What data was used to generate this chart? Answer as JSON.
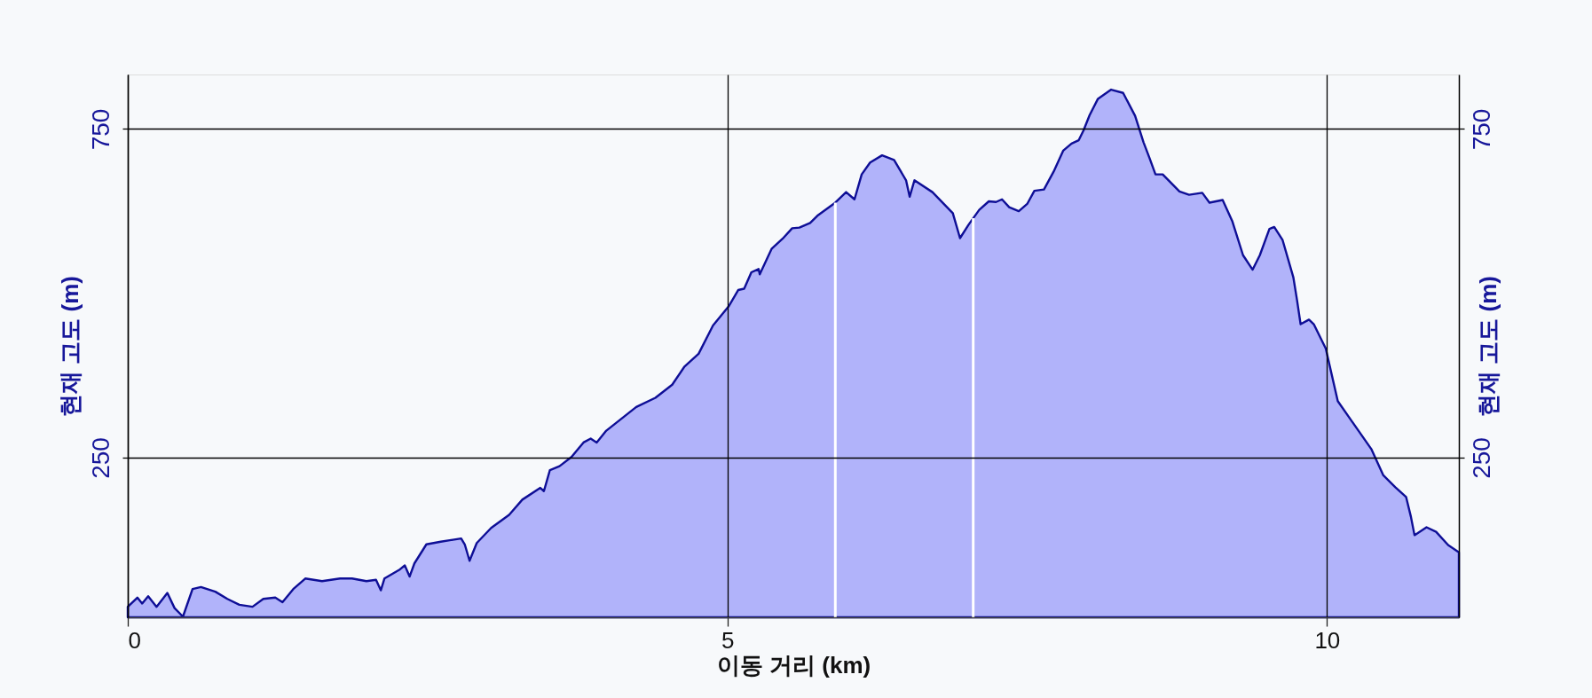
{
  "chart_data": {
    "type": "area",
    "xlabel": "이동 거리 (km)",
    "ylabel": "현재 고도 (m)",
    "y2label": "현재 고도 (m)",
    "color": "#b1b3fa",
    "x": [
      0.0,
      0.08,
      0.12,
      0.17,
      0.24,
      0.33,
      0.39,
      0.46,
      0.54,
      0.61,
      0.73,
      0.83,
      0.93,
      1.04,
      1.13,
      1.23,
      1.29,
      1.38,
      1.48,
      1.62,
      1.77,
      1.87,
      1.99,
      2.07,
      2.11,
      2.14,
      2.27,
      2.31,
      2.35,
      2.39,
      2.49,
      2.61,
      2.71,
      2.78,
      2.81,
      2.85,
      2.91,
      3.03,
      3.18,
      3.29,
      3.44,
      3.47,
      3.52,
      3.6,
      3.7,
      3.8,
      3.86,
      3.91,
      3.99,
      4.24,
      4.4,
      4.54,
      4.64,
      4.76,
      4.88,
      5.01,
      5.09,
      5.14,
      5.2,
      5.26,
      5.27,
      5.37,
      5.46,
      5.54,
      5.6,
      5.69,
      5.75,
      5.9,
      5.99,
      6.06,
      6.12,
      6.19,
      6.29,
      6.39,
      6.49,
      6.52,
      6.56,
      6.71,
      6.88,
      6.94,
      7.01,
      7.1,
      7.18,
      7.24,
      7.29,
      7.35,
      7.43,
      7.5,
      7.56,
      7.64,
      7.72,
      7.8,
      7.87,
      7.93,
      7.97,
      8.02,
      8.09,
      8.2,
      8.3,
      8.4,
      8.47,
      8.52,
      8.57,
      8.63,
      8.77,
      8.85,
      8.96,
      9.02,
      9.13,
      9.21,
      9.3,
      9.38,
      9.44,
      9.52,
      9.56,
      9.63,
      9.72,
      9.75,
      9.78,
      9.85,
      9.89,
      9.99,
      10.09,
      10.22,
      10.37,
      10.47,
      10.57,
      10.66,
      10.7,
      10.73,
      10.83,
      10.91,
      11.01,
      11.1
    ],
    "values": [
      23,
      37,
      28,
      39,
      23,
      44,
      21,
      8,
      50,
      53,
      46,
      35,
      26,
      23,
      35,
      37,
      30,
      50,
      66,
      62,
      66,
      66,
      62,
      64,
      48,
      66,
      80,
      86,
      69,
      89,
      118,
      122,
      125,
      127,
      118,
      93,
      120,
      143,
      163,
      186,
      204,
      199,
      231,
      237,
      251,
      273,
      279,
      273,
      291,
      327,
      341,
      361,
      388,
      408,
      451,
      480,
      505,
      507,
      532,
      537,
      529,
      568,
      583,
      599,
      600,
      607,
      618,
      638,
      654,
      643,
      681,
      699,
      710,
      703,
      672,
      647,
      672,
      654,
      622,
      584,
      604,
      627,
      640,
      639,
      643,
      631,
      625,
      636,
      656,
      658,
      685,
      717,
      728,
      733,
      748,
      771,
      796,
      810,
      805,
      770,
      730,
      706,
      681,
      681,
      655,
      650,
      653,
      638,
      642,
      610,
      558,
      536,
      558,
      598,
      601,
      581,
      524,
      490,
      453,
      460,
      453,
      416,
      336,
      302,
      263,
      223,
      205,
      190,
      160,
      132,
      144,
      137,
      117,
      106
    ],
    "xlim": [
      0,
      11.1
    ],
    "xticks": [
      0,
      5,
      10
    ],
    "ylim": [
      7,
      833
    ],
    "yticks": [
      250,
      750
    ],
    "y2lim": [
      7,
      833
    ],
    "y2ticks": [
      250,
      750
    ],
    "grid": true,
    "ref_lines": [
      {
        "axis": "x",
        "value": 5.9,
        "color": "#ffffff"
      },
      {
        "axis": "x",
        "value": 7.05,
        "color": "#ffffff"
      }
    ]
  }
}
